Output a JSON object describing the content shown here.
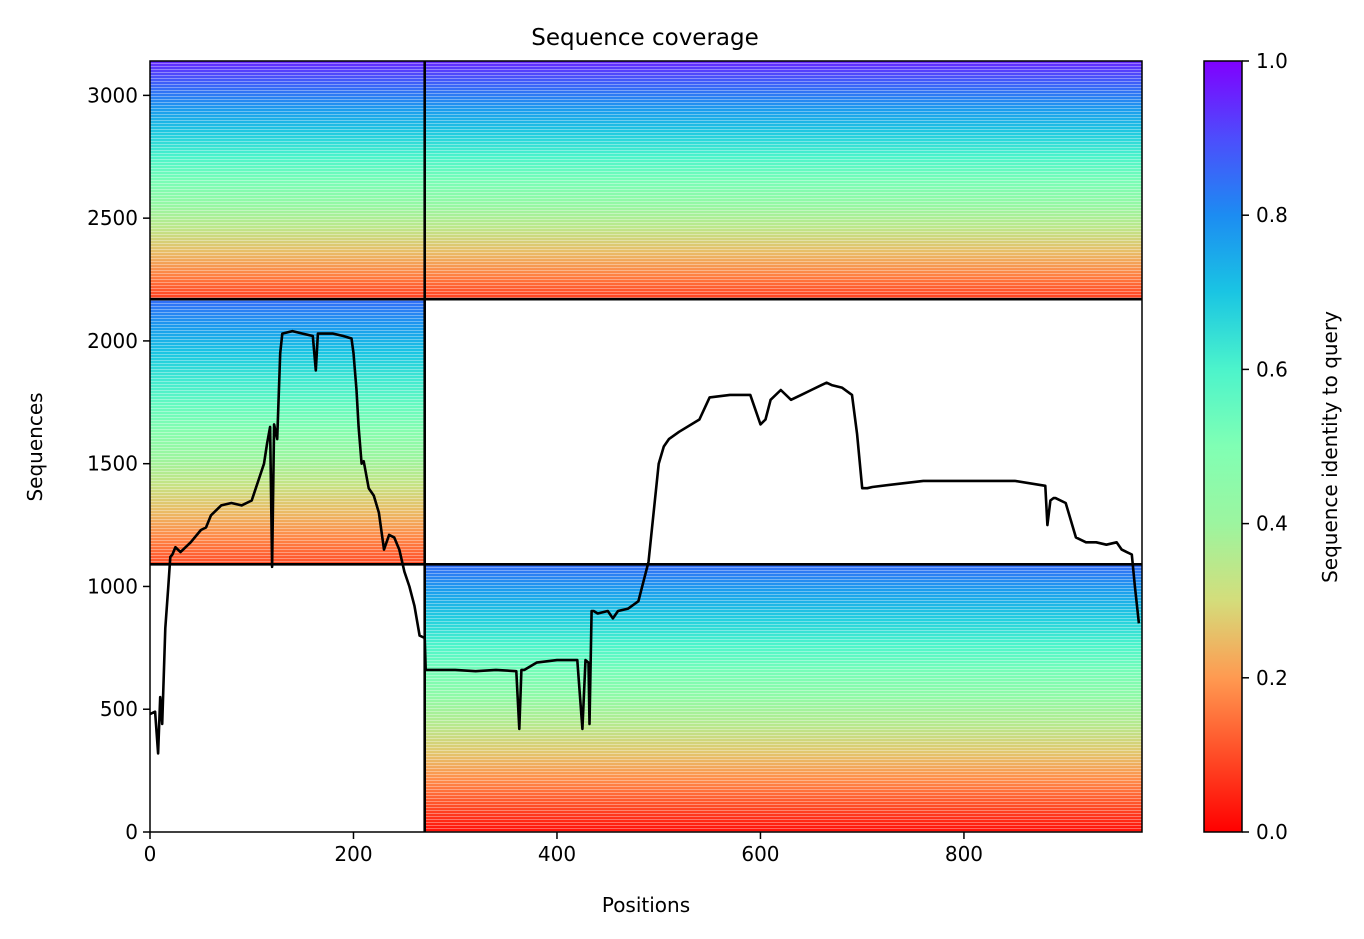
{
  "chart_data": {
    "type": "heatmap",
    "title": "Sequence coverage",
    "xlabel": "Positions",
    "ylabel": "Sequences",
    "xlim": [
      0,
      975
    ],
    "ylim": [
      0,
      3140
    ],
    "xticks": [
      0,
      200,
      400,
      600,
      800
    ],
    "yticks": [
      0,
      500,
      1000,
      1500,
      2000,
      2500,
      3000
    ],
    "colorbar": {
      "label": "Sequence identity to query",
      "colormap": "rainbow_r",
      "range": [
        0,
        1
      ],
      "ticks": [
        "0.0",
        "0.2",
        "0.4",
        "0.6",
        "0.8",
        "1.0"
      ]
    },
    "separators": {
      "x": [
        270
      ],
      "y": [
        1090,
        2170
      ]
    },
    "blocks": [
      {
        "x": [
          0,
          270
        ],
        "y": [
          2170,
          3140
        ],
        "identity_top": 0.95,
        "identity_bottom": 0.08
      },
      {
        "x": [
          270,
          975
        ],
        "y": [
          2170,
          3140
        ],
        "identity_top": 0.95,
        "identity_bottom": 0.08
      },
      {
        "x": [
          0,
          270
        ],
        "y": [
          1090,
          2170
        ],
        "identity_top": 0.85,
        "identity_bottom": 0.1
      },
      {
        "x": [
          270,
          975
        ],
        "y": [
          0,
          1090
        ],
        "identity_top": 0.85,
        "identity_bottom": 0.02
      }
    ],
    "coverage_line": {
      "x": [
        0,
        5,
        8,
        10,
        12,
        15,
        18,
        20,
        22,
        25,
        30,
        40,
        50,
        55,
        60,
        70,
        80,
        90,
        100,
        108,
        112,
        115,
        118,
        120,
        122,
        125,
        128,
        130,
        140,
        150,
        160,
        163,
        165,
        168,
        170,
        180,
        190,
        198,
        200,
        203,
        205,
        208,
        210,
        215,
        220,
        225,
        230,
        235,
        240,
        245,
        250,
        255,
        260,
        265,
        270,
        271,
        280,
        300,
        320,
        340,
        360,
        363,
        365,
        368,
        380,
        400,
        420,
        425,
        428,
        431,
        432,
        434,
        436,
        440,
        450,
        455,
        460,
        470,
        480,
        490,
        495,
        500,
        505,
        510,
        520,
        540,
        550,
        570,
        590,
        595,
        600,
        605,
        610,
        620,
        630,
        640,
        650,
        660,
        665,
        670,
        680,
        690,
        695,
        700,
        705,
        710,
        740,
        760,
        800,
        850,
        880,
        882,
        885,
        888,
        890,
        900,
        910,
        920,
        930,
        940,
        950,
        955,
        960,
        965,
        968,
        972
      ],
      "y": [
        480,
        490,
        320,
        550,
        440,
        830,
        1000,
        1120,
        1130,
        1160,
        1140,
        1180,
        1230,
        1240,
        1290,
        1330,
        1340,
        1330,
        1350,
        1450,
        1500,
        1580,
        1650,
        1080,
        1660,
        1600,
        1950,
        2030,
        2040,
        2030,
        2020,
        1880,
        2030,
        2030,
        2030,
        2030,
        2020,
        2010,
        1950,
        1800,
        1650,
        1500,
        1510,
        1400,
        1370,
        1300,
        1150,
        1210,
        1200,
        1150,
        1060,
        1000,
        920,
        800,
        790,
        660,
        660,
        660,
        655,
        660,
        655,
        420,
        660,
        660,
        690,
        700,
        700,
        420,
        700,
        690,
        440,
        900,
        900,
        890,
        900,
        870,
        900,
        910,
        940,
        1100,
        1300,
        1500,
        1570,
        1600,
        1630,
        1680,
        1770,
        1780,
        1780,
        1720,
        1660,
        1680,
        1760,
        1800,
        1760,
        1780,
        1800,
        1820,
        1830,
        1820,
        1810,
        1780,
        1620,
        1400,
        1400,
        1405,
        1420,
        1430,
        1430,
        1430,
        1410,
        1250,
        1350,
        1360,
        1360,
        1340,
        1200,
        1180,
        1180,
        1170,
        1180,
        1150,
        1140,
        1130,
        1000,
        850
      ]
    }
  }
}
